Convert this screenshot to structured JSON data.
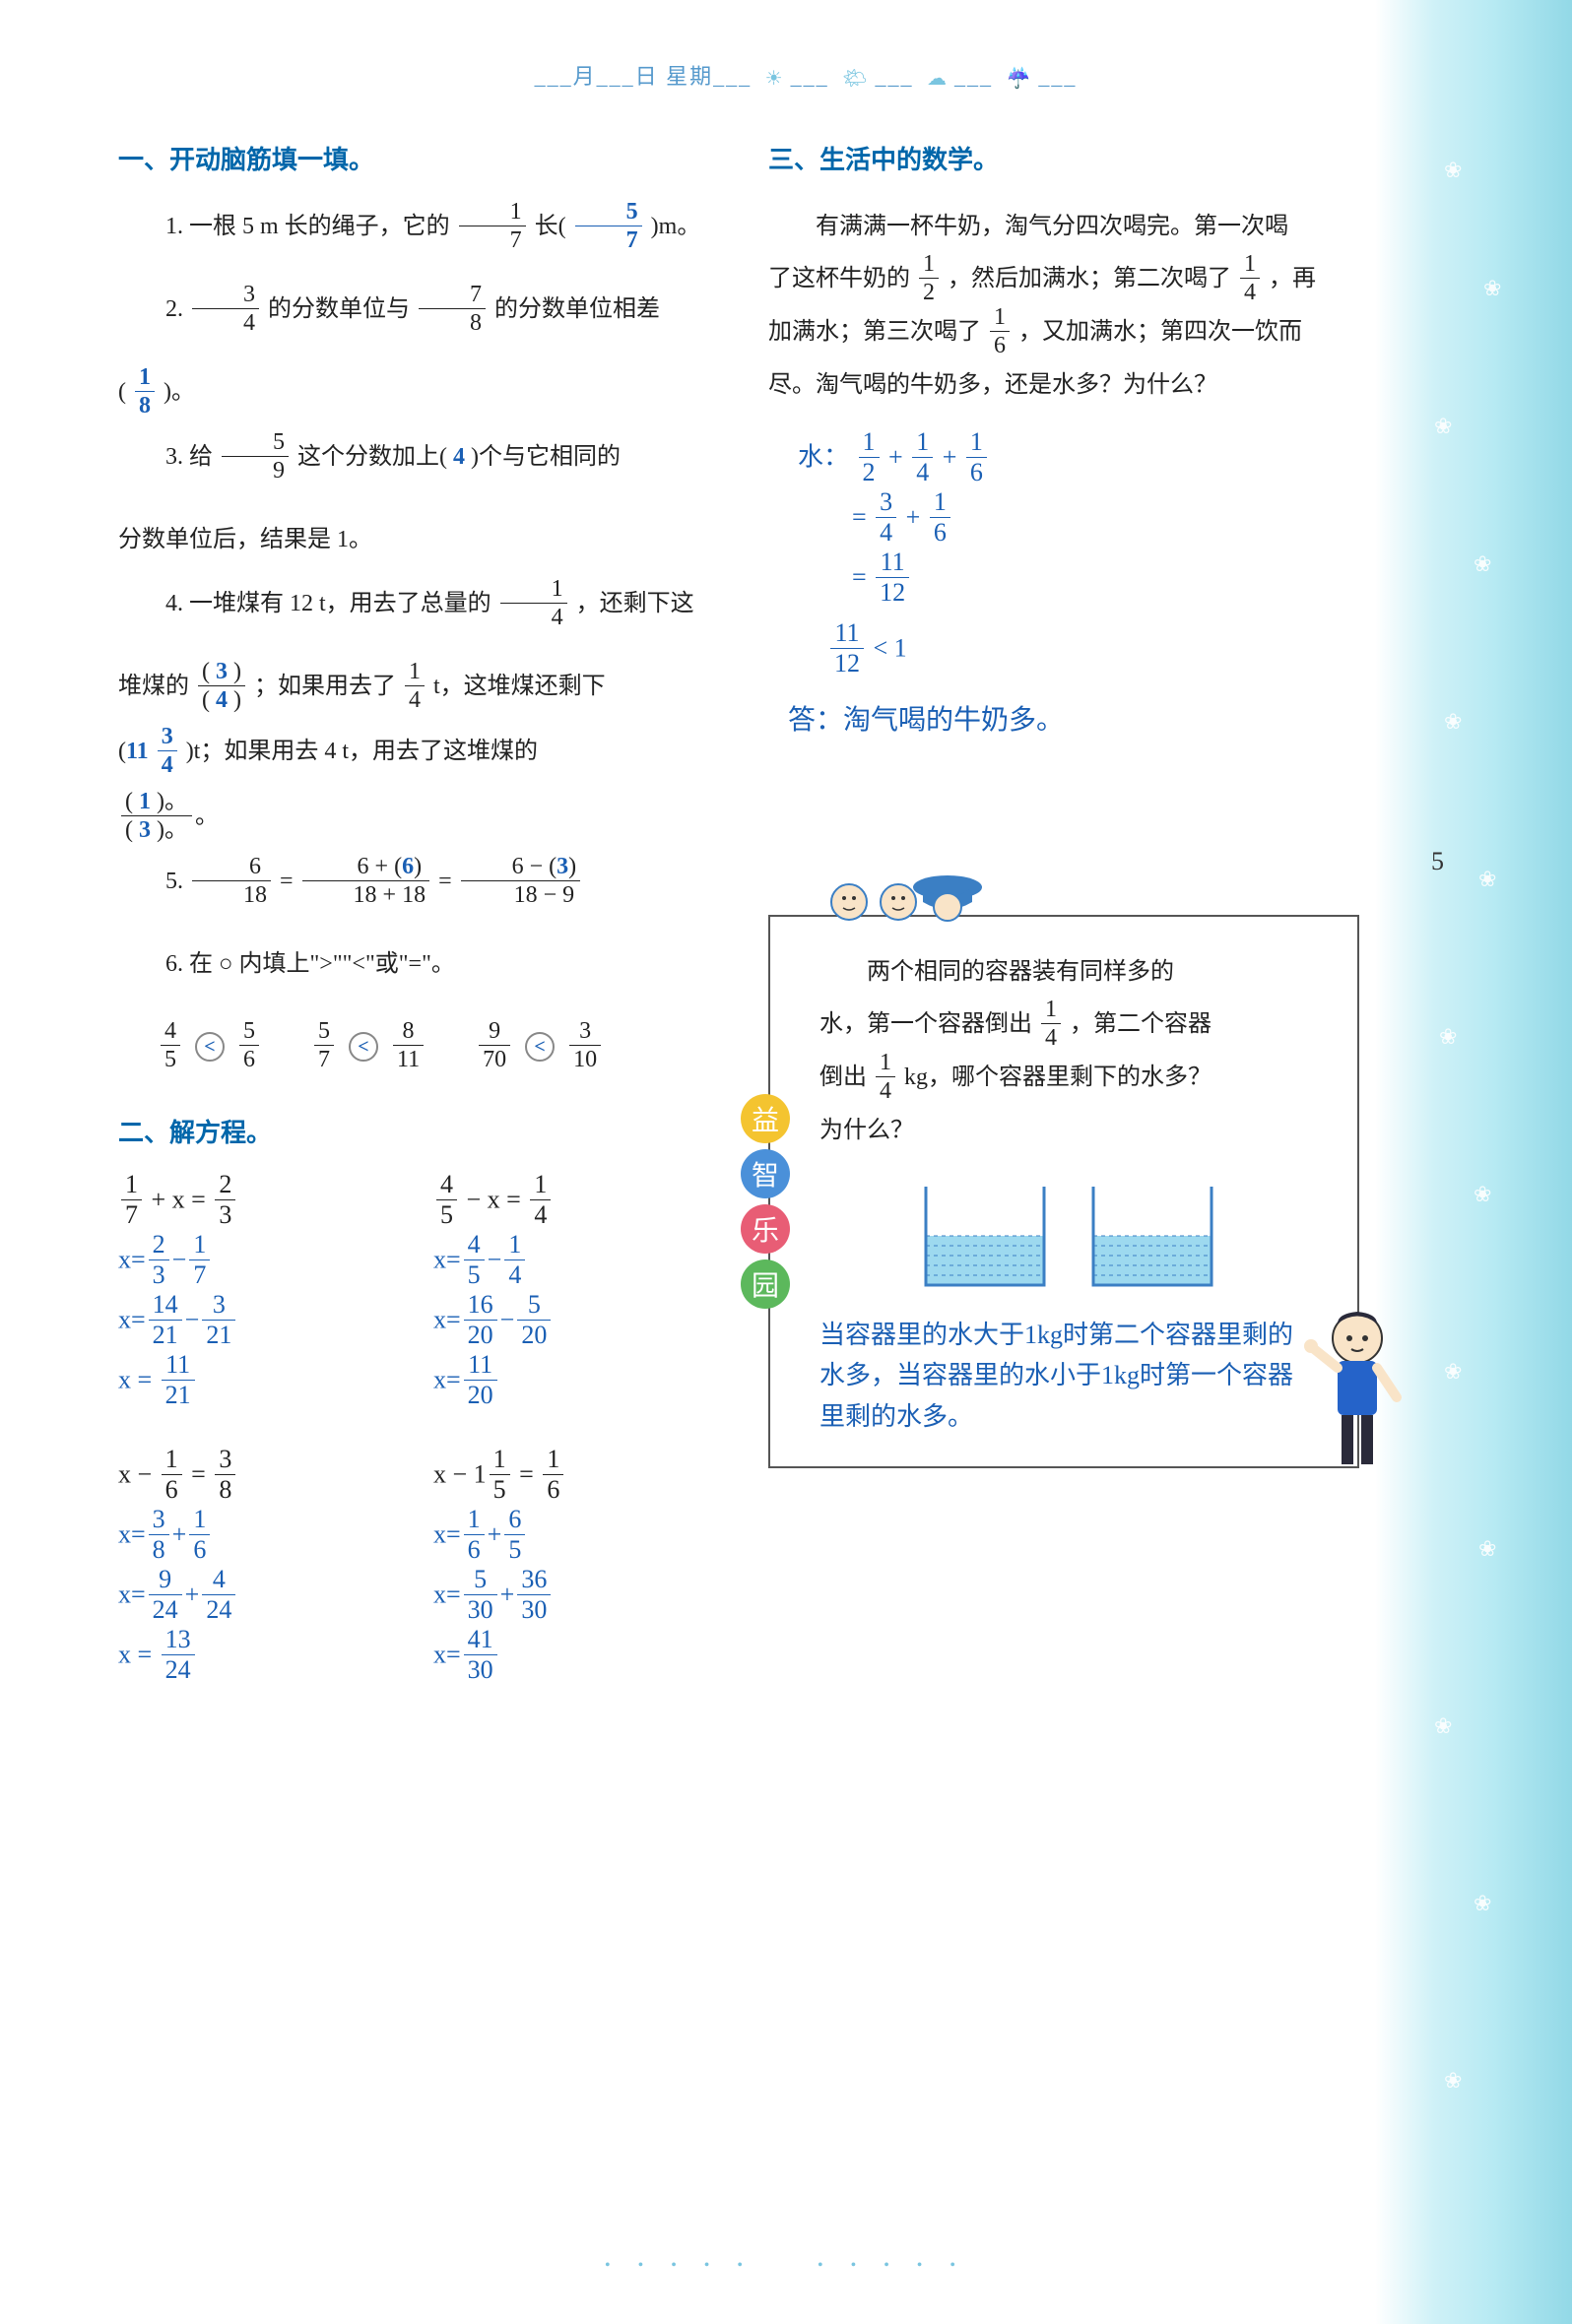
{
  "header": {
    "date_line": "___月___日 星期___",
    "icons": [
      "☀",
      "🌤",
      "☁",
      "☔"
    ]
  },
  "page_number": "5",
  "section1": {
    "title": "一、开动脑筋填一填。",
    "q1": {
      "pre": "1. 一根 5 m 长的绳子，它的",
      "f1": {
        "n": "1",
        "d": "7"
      },
      "mid": "长(",
      "ans": {
        "n": "5",
        "d": "7"
      },
      "post": ")m。"
    },
    "q2": {
      "pre": "2. ",
      "f1": {
        "n": "3",
        "d": "4"
      },
      "mid1": " 的分数单位与 ",
      "f2": {
        "n": "7",
        "d": "8"
      },
      "mid2": " 的分数单位相差",
      "open": "(",
      "ans": {
        "n": "1",
        "d": "8"
      },
      "close": ")。"
    },
    "q3": {
      "pre": "3. 给",
      "f1": {
        "n": "5",
        "d": "9"
      },
      "mid": "这个分数加上(",
      "ans": "4",
      "post": ")个与它相同的",
      "line2": "分数单位后，结果是 1。"
    },
    "q4": {
      "l1a": "4. 一堆煤有 12 t，用去了总量的",
      "f1": {
        "n": "1",
        "d": "4"
      },
      "l1b": "，还剩下这",
      "l2a": "堆煤的",
      "open1": "(",
      "ans1": {
        "n": "3",
        "d": "4"
      },
      "close1": ")",
      "l2b": "；如果用去了 ",
      "f2": {
        "n": "1",
        "d": "4"
      },
      "l2c": " t，这堆煤还剩下",
      "l3a": "(",
      "ans2_int": "11",
      "ans2": {
        "n": "3",
        "d": "4"
      },
      "l3b": ")t；如果用去 4 t，用去了这堆煤的",
      "l4open": "(",
      "ans3": {
        "n": "1",
        "d": "3"
      },
      "l4close": ")。"
    },
    "q5": {
      "pre": "5. ",
      "f1": {
        "n": "6",
        "d": "18"
      },
      "eq1": " = ",
      "num1a": "6 + (",
      "ans1": "6",
      "num1b": ")",
      "den1": "18 + 18",
      "eq2": " = ",
      "num2a": "6 − (",
      "ans2": "3",
      "num2b": ")",
      "den2": "18 − 9"
    },
    "q6": {
      "title": "6. 在 ○ 内填上\">\"\"<\"或\"=\"。",
      "items": [
        {
          "l": {
            "n": "4",
            "d": "5"
          },
          "op": "<",
          "r": {
            "n": "5",
            "d": "6"
          }
        },
        {
          "l": {
            "n": "5",
            "d": "7"
          },
          "op": "<",
          "r": {
            "n": "8",
            "d": "11"
          }
        },
        {
          "l": {
            "n": "9",
            "d": "70"
          },
          "op": "<",
          "r": {
            "n": "3",
            "d": "10"
          }
        }
      ]
    }
  },
  "section2": {
    "title": "二、解方程。",
    "pairs": [
      {
        "left": {
          "problem_pre": "",
          "f1": {
            "n": "1",
            "d": "7"
          },
          "op": " + x = ",
          "f2": {
            "n": "2",
            "d": "3"
          },
          "steps": [
            {
              "pre": "x=",
              "a": {
                "n": "2",
                "d": "3"
              },
              "op": "−",
              "b": {
                "n": "1",
                "d": "7"
              }
            },
            {
              "pre": "x=",
              "a": {
                "n": "14",
                "d": "21"
              },
              "op": "−",
              "b": {
                "n": "3",
                "d": "21"
              }
            },
            {
              "pre": "x = ",
              "a": {
                "n": "11",
                "d": "21"
              }
            }
          ]
        },
        "right": {
          "f1": {
            "n": "4",
            "d": "5"
          },
          "op": " − x = ",
          "f2": {
            "n": "1",
            "d": "4"
          },
          "steps": [
            {
              "pre": "x=",
              "a": {
                "n": "4",
                "d": "5"
              },
              "op": "−",
              "b": {
                "n": "1",
                "d": "4"
              }
            },
            {
              "pre": "x=",
              "a": {
                "n": "16",
                "d": "20"
              },
              "op": "−",
              "b": {
                "n": "5",
                "d": "20"
              }
            },
            {
              "pre": "x=",
              "a": {
                "n": "11",
                "d": "20"
              }
            }
          ]
        }
      },
      {
        "left": {
          "problem_pre": "x − ",
          "f1": {
            "n": "1",
            "d": "6"
          },
          "op": " = ",
          "f2": {
            "n": "3",
            "d": "8"
          },
          "steps": [
            {
              "pre": "x=",
              "a": {
                "n": "3",
                "d": "8"
              },
              "op": "+",
              "b": {
                "n": "1",
                "d": "6"
              }
            },
            {
              "pre": "x=",
              "a": {
                "n": "9",
                "d": "24"
              },
              "op": "+",
              "b": {
                "n": "4",
                "d": "24"
              }
            },
            {
              "pre": "x = ",
              "a": {
                "n": "13",
                "d": "24"
              }
            }
          ]
        },
        "right": {
          "problem_pre": "x − 1",
          "f1": {
            "n": "1",
            "d": "5"
          },
          "op": " = ",
          "f2": {
            "n": "1",
            "d": "6"
          },
          "steps": [
            {
              "pre": "x=",
              "a": {
                "n": "1",
                "d": "6"
              },
              "op": "+",
              "b": {
                "n": "6",
                "d": "5"
              }
            },
            {
              "pre": "x=",
              "a": {
                "n": "5",
                "d": "30"
              },
              "op": "+",
              "b": {
                "n": "36",
                "d": "30"
              }
            },
            {
              "pre": "x=",
              "a": {
                "n": "41",
                "d": "30"
              }
            }
          ]
        }
      }
    ]
  },
  "section3": {
    "title": "三、生活中的数学。",
    "body_parts": {
      "p1": "有满满一杯牛奶，淘气分四次喝完。第一次喝",
      "f1": {
        "n": "1",
        "d": "2"
      },
      "p2": "了这杯牛奶的",
      "p3": "，然后加满水；第二次喝了",
      "f2": {
        "n": "1",
        "d": "4"
      },
      "p4": "，再",
      "p5": "加满水；第三次喝了",
      "f3": {
        "n": "1",
        "d": "6"
      },
      "p6": "，又加满水；第四次一饮而",
      "p7": "尽。淘气喝的牛奶多，还是水多？为什么？"
    },
    "work": {
      "l1": {
        "label": "水：",
        "a": {
          "n": "1",
          "d": "2"
        },
        "op1": "+",
        "b": {
          "n": "1",
          "d": "4"
        },
        "op2": "+",
        "c": {
          "n": "1",
          "d": "6"
        }
      },
      "l2": {
        "pre": "=",
        "a": {
          "n": "3",
          "d": "4"
        },
        "op": "+",
        "b": {
          "n": "1",
          "d": "6"
        }
      },
      "l3": {
        "pre": "=",
        "a": {
          "n": "11",
          "d": "12"
        }
      },
      "l4": {
        "a": {
          "n": "11",
          "d": "12"
        },
        "op": "< 1"
      }
    },
    "answer": "答：淘气喝的牛奶多。"
  },
  "puzzle": {
    "tabs": [
      "益",
      "智",
      "乐",
      "园"
    ],
    "body": {
      "p1": "两个相同的容器装有同样多的",
      "p2": "水，第一个容器倒出",
      "f1": {
        "n": "1",
        "d": "4"
      },
      "p3": "，第二个容器",
      "p4": "倒出",
      "f2": {
        "n": "1",
        "d": "4"
      },
      "p5": " kg，哪个容器里剩下的水多？",
      "p6": "为什么？"
    },
    "container": {
      "stroke": "#3b7fc4",
      "fill": "#5bb5e0",
      "water_level": 0.55
    },
    "answer": "当容器里的水大于1kg时第二个容器里剩的水多，当容器里的水小于1kg时第一个容器里剩的水多。"
  },
  "colors": {
    "heading": "#0066aa",
    "blue": "#1a5fb4",
    "border_bg": "#7ac5e0"
  }
}
